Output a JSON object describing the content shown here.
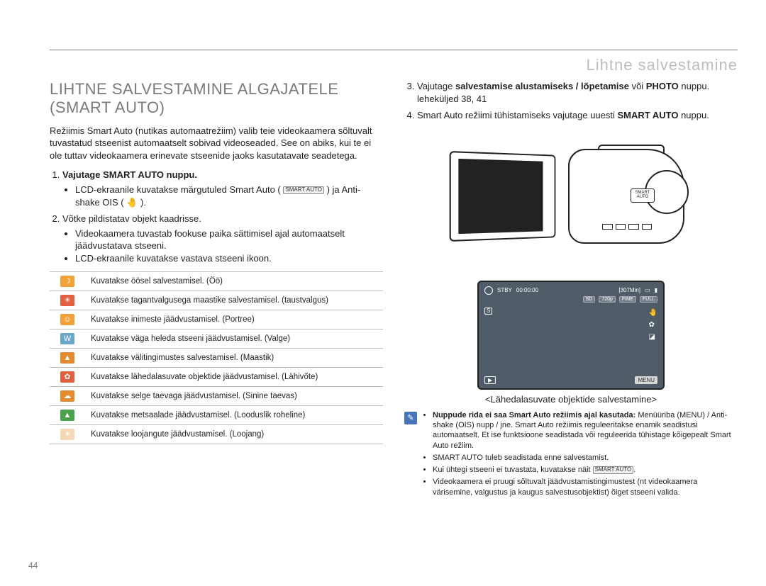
{
  "header": {
    "section_label": "Lihtne salvestamine"
  },
  "left": {
    "title": "LIHTNE SALVESTAMINE ALGAJATELE (SMART AUTO)",
    "intro": "Režiimis Smart Auto (nutikas automaatrežiim) valib teie videokaamera sõltuvalt tuvastatud stseenist automaatselt sobivad videoseaded. See on abiks, kui te ei ole tuttav videokaamera erinevate stseenide jaoks kasutatavate seadetega.",
    "step1_main": "Vajutage SMART AUTO nuppu.",
    "step1_bullet": "LCD-ekraanile kuvatakse märgutuled Smart Auto ( ",
    "step1_bullet_badge": "SMART AUTO",
    "step1_bullet2": " ) ja Anti-shake OIS ( 🤚 ).",
    "step2_main": "Võtke pildistatav objekt kaadrisse.",
    "step2_b1": "Videokaamera tuvastab fookuse paika sättimisel ajal automaatselt jäädvustatava stseeni.",
    "step2_b2": "LCD-ekraanile kuvatakse vastava stseeni ikoon.",
    "table": [
      {
        "color": "#f2a23a",
        "glyph": "☽",
        "desc": "Kuvatakse öösel salvestamisel. (Öö)"
      },
      {
        "color": "#e25f3f",
        "glyph": "☀",
        "desc": "Kuvatakse tagantvalgusega maastike salvestamisel. (taustvalgus)"
      },
      {
        "color": "#f2a23a",
        "glyph": "☺",
        "desc": "Kuvatakse inimeste jäädvustamisel. (Portree)"
      },
      {
        "color": "#6aa6c9",
        "glyph": "W",
        "desc": "Kuvatakse väga heleda stseeni jäädvustamisel. (Valge)"
      },
      {
        "color": "#e68a2e",
        "glyph": "▲",
        "desc": "Kuvatakse välitingimustes salvestamisel. (Maastik)"
      },
      {
        "color": "#e25f3f",
        "glyph": "✿",
        "desc": "Kuvatakse lähedalasuvate objektide jäädvustamisel. (Lähivõte)"
      },
      {
        "color": "#e68a2e",
        "glyph": "☁",
        "desc": "Kuvatakse selge taevaga jäädvustamisel. (Sinine taevas)"
      },
      {
        "color": "#4aa24a",
        "glyph": "▲",
        "desc": "Kuvatakse metsaalade jäädvustamisel. (Looduslik roheline)"
      },
      {
        "color": "#f4d8b5",
        "glyph": "☀",
        "desc": "Kuvatakse loojangute jäädvustamisel. (Loojang)"
      }
    ]
  },
  "right": {
    "step3": "Vajutage salvestamise alustamiseks / lõpetamise või PHOTO nuppu.  leheküljed 38, 41",
    "step3_prefix": "Vajutage ",
    "step3_bold": "salvestamise alustamiseks / lõpetamise",
    "step3_mid": " või ",
    "step3_bold2": "PHOTO",
    "step3_suffix": " nuppu.  leheküljed 38, 41",
    "step4_a": "Smart Auto režiimi tühistamiseks vajutage uuesti ",
    "step4_b": "SMART AUTO",
    "step4_c": " nuppu.",
    "cam_label": "SMART AUTO",
    "lcd": {
      "stby": "STBY",
      "time": "00:00:00",
      "remain": "[307Min]",
      "sd": "SD",
      "res": "720p",
      "fine": "FINE",
      "full": "FULL",
      "menu": "MENU",
      "play": "▶"
    },
    "caption": "<Lähedalasuvate objektide salvestamine>",
    "note": {
      "n1_bold": "Nuppude rida ei saa Smart Auto režiimis ajal kasutada:",
      "n1_rest": " Menüüriba (MENU) / Anti-shake (OIS) nupp / jne. Smart Auto režiimis reguleeritakse enamik seadistusi automaatselt. Et ise funktsioone seadistada või reguleerida tühistage kõigepealt Smart Auto režiim.",
      "n2": "SMART AUTO tuleb seadistada enne salvestamist.",
      "n3a": "Kui ühtegi stseeni ei tuvastata, kuvatakse näit ",
      "n3badge": "SMART AUTO",
      "n3b": ".",
      "n4": "Videokaamera ei pruugi sõltuvalt jäädvustamistingimustest (nt videokaamera värisemine, valgustus ja kaugus salvestusobjektist) õiget stseeni valida."
    }
  },
  "page_number": "44"
}
